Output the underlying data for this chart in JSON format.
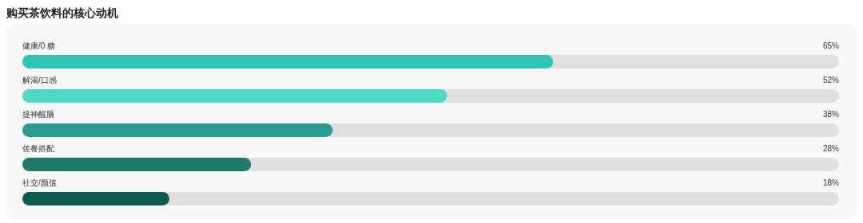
{
  "chart_data": {
    "type": "bar",
    "orientation": "horizontal",
    "title": "购买茶饮料的核心动机",
    "categories": [
      "健康/0 糖",
      "解渴/口感",
      "提神醒脑",
      "佐餐搭配",
      "社交/颜值"
    ],
    "values": [
      65,
      52,
      38,
      28,
      18
    ],
    "colors": [
      "#2ec4b6",
      "#4fd9c9",
      "#2a9d8f",
      "#1f7a6c",
      "#0d5c4f"
    ],
    "xlim": [
      0,
      100
    ],
    "data_labels": true,
    "value_labels": [
      "65%",
      "52%",
      "38%",
      "28%",
      "18%"
    ]
  }
}
